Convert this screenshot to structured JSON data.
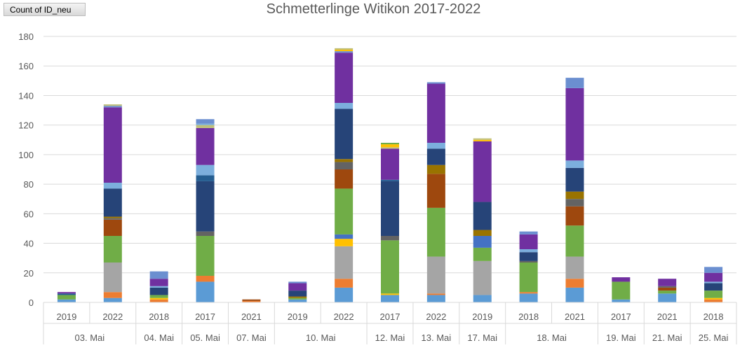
{
  "pivot_field_button": "Count of ID_neu",
  "chart_data": {
    "type": "bar",
    "stacked": true,
    "title": "Schmetterlinge Witikon 2017-2022",
    "xlabel": "",
    "ylabel": "",
    "ylim": [
      0,
      180
    ],
    "yticks": [
      0,
      20,
      40,
      60,
      80,
      100,
      120,
      140,
      160,
      180
    ],
    "grid": true,
    "legend": "none",
    "colors": [
      "#5b9bd5",
      "#ed7d31",
      "#a5a5a5",
      "#ffc000",
      "#4472c4",
      "#70ad47",
      "#9e480e",
      "#636363",
      "#997300",
      "#264478",
      "#255e91",
      "#7cafdd",
      "#7030a0",
      "#6b8fd0",
      "#bfbf7a"
    ],
    "groups": [
      {
        "label": "03. Mai",
        "categories": [
          "2019",
          "2022"
        ]
      },
      {
        "label": "04. Mai",
        "categories": [
          "2018"
        ]
      },
      {
        "label": "05. Mai",
        "categories": [
          "2017"
        ]
      },
      {
        "label": "07. Mai",
        "categories": [
          "2021"
        ]
      },
      {
        "label": "10. Mai",
        "categories": [
          "2019",
          "2022"
        ]
      },
      {
        "label": "12. Mai",
        "categories": [
          "2017"
        ]
      },
      {
        "label": "13. Mai",
        "categories": [
          "2022"
        ]
      },
      {
        "label": "17. Mai",
        "categories": [
          "2019"
        ]
      },
      {
        "label": "18. Mai",
        "categories": [
          "2018",
          "2021"
        ]
      },
      {
        "label": "19. Mai",
        "categories": [
          "2017"
        ]
      },
      {
        "label": "21. Mai",
        "categories": [
          "2021"
        ]
      },
      {
        "label": "25. Mai",
        "categories": [
          "2018"
        ]
      }
    ],
    "bars": [
      {
        "x": "03. Mai 2019",
        "segments": [
          [
            0,
            2
          ],
          [
            5,
            3
          ],
          [
            10,
            1
          ],
          [
            12,
            1
          ]
        ]
      },
      {
        "x": "03. Mai 2022",
        "segments": [
          [
            0,
            3
          ],
          [
            1,
            4
          ],
          [
            2,
            20
          ],
          [
            5,
            18
          ],
          [
            6,
            11
          ],
          [
            7,
            1
          ],
          [
            8,
            1
          ],
          [
            9,
            19
          ],
          [
            11,
            4
          ],
          [
            12,
            51
          ],
          [
            13,
            1
          ],
          [
            14,
            1
          ]
        ]
      },
      {
        "x": "04. Mai 2018",
        "segments": [
          [
            1,
            2
          ],
          [
            3,
            1
          ],
          [
            5,
            2
          ],
          [
            9,
            5
          ],
          [
            11,
            1
          ],
          [
            12,
            5
          ],
          [
            13,
            5
          ]
        ]
      },
      {
        "x": "05. Mai 2017",
        "segments": [
          [
            0,
            14
          ],
          [
            1,
            4
          ],
          [
            5,
            27
          ],
          [
            7,
            3
          ],
          [
            9,
            34
          ],
          [
            10,
            4
          ],
          [
            11,
            7
          ],
          [
            12,
            25
          ],
          [
            14,
            2
          ],
          [
            11,
            1
          ],
          [
            13,
            3
          ]
        ]
      },
      {
        "x": "07. Mai 2021",
        "segments": [
          [
            1,
            1
          ],
          [
            6,
            1
          ]
        ]
      },
      {
        "x": "10. Mai 2019",
        "segments": [
          [
            0,
            2
          ],
          [
            5,
            1
          ],
          [
            8,
            1
          ],
          [
            9,
            4
          ],
          [
            12,
            5
          ],
          [
            13,
            1
          ]
        ]
      },
      {
        "x": "10. Mai 2022",
        "segments": [
          [
            0,
            10
          ],
          [
            1,
            6
          ],
          [
            2,
            22
          ],
          [
            3,
            5
          ],
          [
            4,
            3
          ],
          [
            5,
            31
          ],
          [
            6,
            13
          ],
          [
            7,
            5
          ],
          [
            8,
            2
          ],
          [
            9,
            34
          ],
          [
            11,
            4
          ],
          [
            12,
            34
          ],
          [
            13,
            1
          ],
          [
            3,
            1
          ],
          [
            14,
            1
          ]
        ]
      },
      {
        "x": "12. Mai 2017",
        "segments": [
          [
            0,
            5
          ],
          [
            3,
            1
          ],
          [
            5,
            36
          ],
          [
            7,
            3
          ],
          [
            9,
            37
          ],
          [
            10,
            1
          ],
          [
            12,
            21
          ],
          [
            14,
            1
          ],
          [
            3,
            2
          ],
          [
            5,
            1
          ]
        ]
      },
      {
        "x": "13. Mai 2022",
        "segments": [
          [
            0,
            5
          ],
          [
            1,
            1
          ],
          [
            2,
            25
          ],
          [
            5,
            33
          ],
          [
            6,
            23
          ],
          [
            8,
            6
          ],
          [
            9,
            11
          ],
          [
            11,
            4
          ],
          [
            12,
            40
          ],
          [
            13,
            1
          ]
        ]
      },
      {
        "x": "17. Mai 2019",
        "segments": [
          [
            0,
            5
          ],
          [
            2,
            23
          ],
          [
            5,
            9
          ],
          [
            4,
            8
          ],
          [
            8,
            4
          ],
          [
            9,
            19
          ],
          [
            12,
            41
          ],
          [
            3,
            1
          ],
          [
            14,
            1
          ]
        ]
      },
      {
        "x": "18. Mai 2018",
        "segments": [
          [
            0,
            6
          ],
          [
            1,
            1
          ],
          [
            5,
            20
          ],
          [
            7,
            1
          ],
          [
            9,
            6
          ],
          [
            11,
            2
          ],
          [
            12,
            10
          ],
          [
            13,
            2
          ]
        ]
      },
      {
        "x": "18. Mai 2021",
        "segments": [
          [
            0,
            10
          ],
          [
            1,
            6
          ],
          [
            2,
            15
          ],
          [
            5,
            21
          ],
          [
            6,
            13
          ],
          [
            7,
            5
          ],
          [
            8,
            5
          ],
          [
            9,
            16
          ],
          [
            11,
            5
          ],
          [
            12,
            49
          ],
          [
            13,
            7
          ]
        ]
      },
      {
        "x": "19. Mai 2017",
        "segments": [
          [
            0,
            2
          ],
          [
            5,
            12
          ],
          [
            12,
            3
          ]
        ]
      },
      {
        "x": "21. Mai 2021",
        "segments": [
          [
            0,
            6
          ],
          [
            5,
            2
          ],
          [
            6,
            2
          ],
          [
            7,
            1
          ],
          [
            12,
            5
          ]
        ]
      },
      {
        "x": "25. Mai 2018",
        "segments": [
          [
            1,
            2
          ],
          [
            3,
            1
          ],
          [
            5,
            5
          ],
          [
            9,
            5
          ],
          [
            11,
            1
          ],
          [
            12,
            6
          ],
          [
            13,
            4
          ]
        ]
      }
    ]
  }
}
